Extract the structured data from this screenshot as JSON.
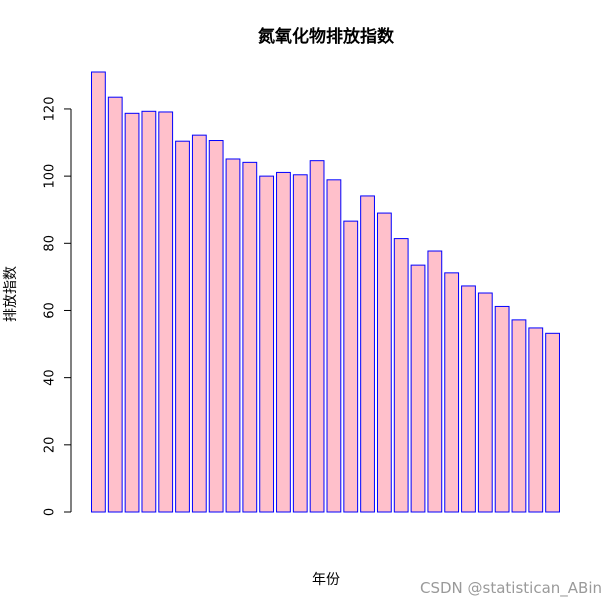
{
  "chart_data": {
    "type": "bar",
    "title": "氮氧化物排放指数",
    "xlabel": "年份",
    "ylabel": "排放指数",
    "ylim": [
      0,
      131
    ],
    "yticks": [
      0,
      20,
      40,
      60,
      80,
      100,
      120
    ],
    "grid": false,
    "legend": "none",
    "values": [
      131,
      123.5,
      118.7,
      119.3,
      119.1,
      110.4,
      112.2,
      110.6,
      105.1,
      104.1,
      100.0,
      101.1,
      100.4,
      104.6,
      98.9,
      86.6,
      94.1,
      89.0,
      81.4,
      73.5,
      77.7,
      71.2,
      67.3,
      65.2,
      61.2,
      57.2,
      54.8,
      53.2
    ],
    "bar_fill": "#ffc0cb",
    "bar_border": "#0000ff",
    "axis_color": "#000000"
  },
  "watermark": "CSDN @statistican_ABin"
}
